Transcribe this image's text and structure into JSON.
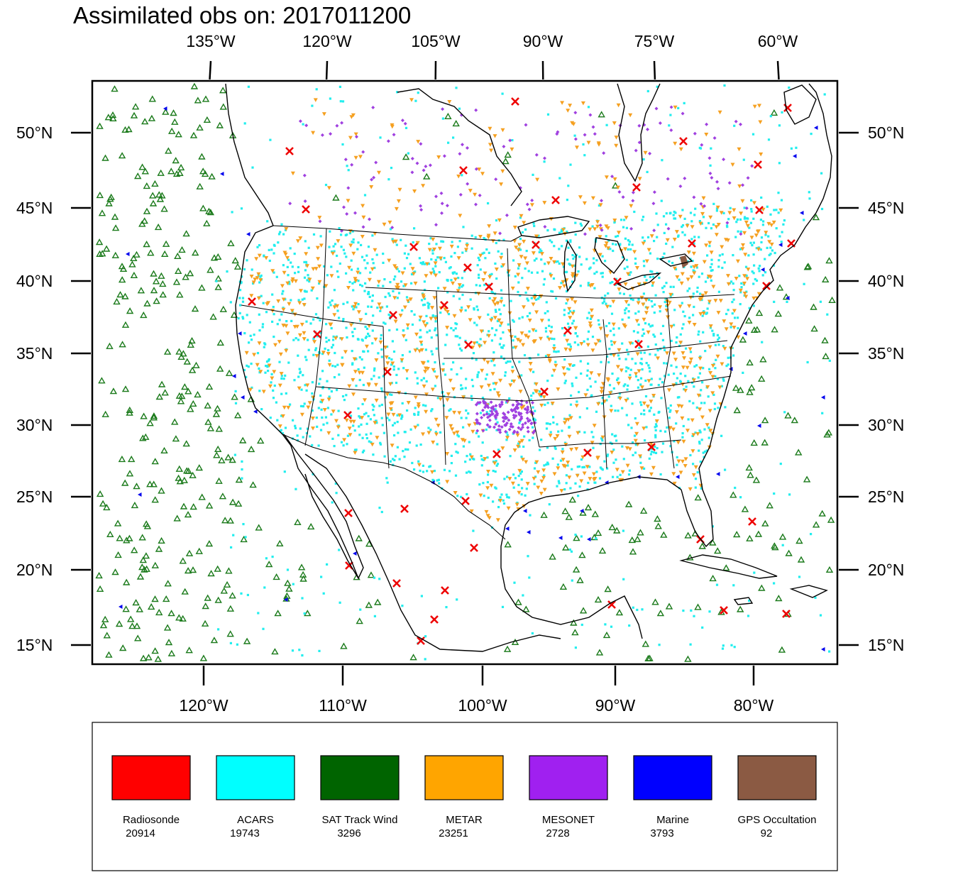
{
  "title": "Assimilated obs on: 2017011200",
  "axes": {
    "top_lon_labels": [
      "135°W",
      "120°W",
      "105°W",
      "90°W",
      "75°W",
      "60°W"
    ],
    "bottom_lon_labels": [
      "120°W",
      "110°W",
      "100°W",
      "90°W",
      "80°W"
    ],
    "left_lat_labels": [
      "50°N",
      "45°N",
      "40°N",
      "35°N",
      "30°N",
      "25°N",
      "20°N",
      "15°N"
    ],
    "right_lat_labels": [
      "50°N",
      "45°N",
      "40°N",
      "35°N",
      "30°N",
      "25°N",
      "20°N",
      "15°N"
    ]
  },
  "legend": [
    {
      "name": "Radiosonde",
      "count": "20914",
      "color": "#ff0000"
    },
    {
      "name": "ACARS",
      "count": "19743",
      "color": "#00ffff"
    },
    {
      "name": "SAT Track Wind",
      "count": "3296",
      "color": "#006400"
    },
    {
      "name": "METAR",
      "count": "23251",
      "color": "#ffa500"
    },
    {
      "name": "MESONET",
      "count": "2728",
      "color": "#a020f0"
    },
    {
      "name": "Marine",
      "count": "3793",
      "color": "#0000ff"
    },
    {
      "name": "GPS Occultation",
      "count": "92",
      "color": "#8b5a43"
    }
  ],
  "colors": {
    "coastline": "#000000",
    "sat_wind_symbol": "#1a7a1a",
    "acars_symbol": "#22eeee",
    "metar_symbol": "#f5a020",
    "mesonet_symbol": "#a040e0",
    "marine_symbol": "#0000ee",
    "radiosonde_symbol": "#ee0000"
  }
}
